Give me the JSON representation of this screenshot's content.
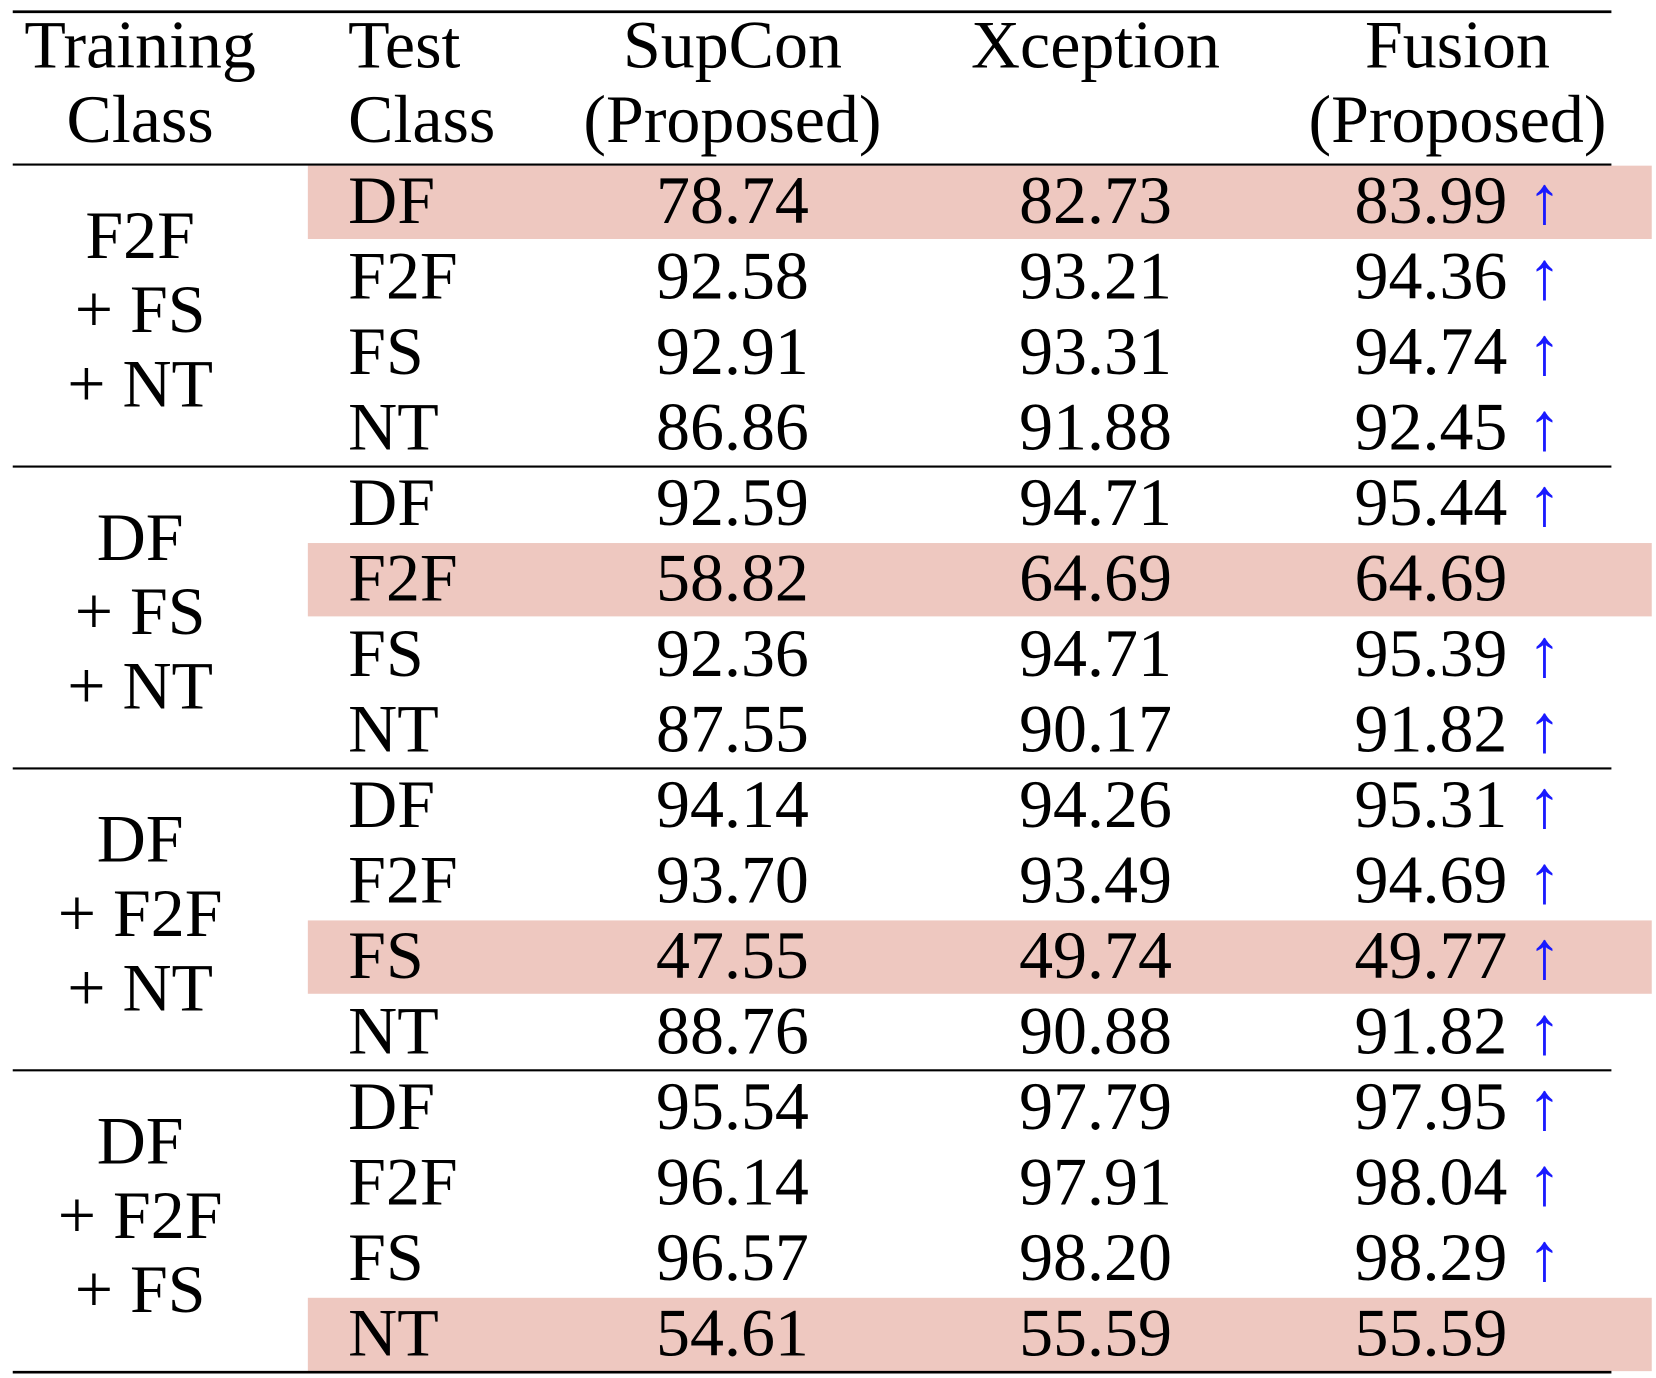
{
  "header": [
    [
      "Training",
      "Class"
    ],
    [
      "Test",
      "Class"
    ],
    [
      "SupCon",
      "(Proposed)"
    ],
    [
      "Xception"
    ],
    [
      "Fusion",
      "(Proposed)"
    ]
  ],
  "groups": [
    {
      "training": [
        "F2F",
        "+ FS",
        "+ NT"
      ],
      "rows": [
        {
          "test": "DF",
          "supcon": "78.74",
          "xception": "82.73",
          "fusion": "83.99",
          "arrow": "↑",
          "highlight": true
        },
        {
          "test": "F2F",
          "supcon": "92.58",
          "xception": "93.21",
          "fusion": "94.36",
          "arrow": "↑"
        },
        {
          "test": "FS",
          "supcon": "92.91",
          "xception": "93.31",
          "fusion": "94.74",
          "arrow": "↑"
        },
        {
          "test": "NT",
          "supcon": "86.86",
          "xception": "91.88",
          "fusion": "92.45",
          "arrow": "↑"
        }
      ]
    },
    {
      "training": [
        "DF",
        "+ FS",
        "+ NT"
      ],
      "rows": [
        {
          "test": "DF",
          "supcon": "92.59",
          "xception": "94.71",
          "fusion": "95.44",
          "arrow": "↑"
        },
        {
          "test": "F2F",
          "supcon": "58.82",
          "xception": "64.69",
          "fusion": "64.69",
          "highlight": true
        },
        {
          "test": "FS",
          "supcon": "92.36",
          "xception": "94.71",
          "fusion": "95.39",
          "arrow": "↑"
        },
        {
          "test": "NT",
          "supcon": "87.55",
          "xception": "90.17",
          "fusion": "91.82",
          "arrow": "↑"
        }
      ]
    },
    {
      "training": [
        "DF",
        "+ F2F",
        "+ NT"
      ],
      "rows": [
        {
          "test": "DF",
          "supcon": "94.14",
          "xception": "94.26",
          "fusion": "95.31",
          "arrow": "↑"
        },
        {
          "test": "F2F",
          "supcon": "93.70",
          "xception": "93.49",
          "fusion": "94.69",
          "arrow": "↑"
        },
        {
          "test": "FS",
          "supcon": "47.55",
          "xception": "49.74",
          "fusion": "49.77",
          "arrow": "↑",
          "highlight": true
        },
        {
          "test": "NT",
          "supcon": "88.76",
          "xception": "90.88",
          "fusion": "91.82",
          "arrow": "↑"
        }
      ]
    },
    {
      "training": [
        "DF",
        "+ F2F",
        "+ FS"
      ],
      "rows": [
        {
          "test": "DF",
          "supcon": "95.54",
          "xception": "97.79",
          "fusion": "97.95",
          "arrow": "↑"
        },
        {
          "test": "F2F",
          "supcon": "96.14",
          "xception": "97.91",
          "fusion": "98.04",
          "arrow": "↑"
        },
        {
          "test": "FS",
          "supcon": "96.57",
          "xception": "98.20",
          "fusion": "98.29",
          "arrow": "↑"
        },
        {
          "test": "NT",
          "supcon": "54.61",
          "xception": "55.59",
          "fusion": "55.59",
          "highlight": true
        }
      ]
    }
  ]
}
